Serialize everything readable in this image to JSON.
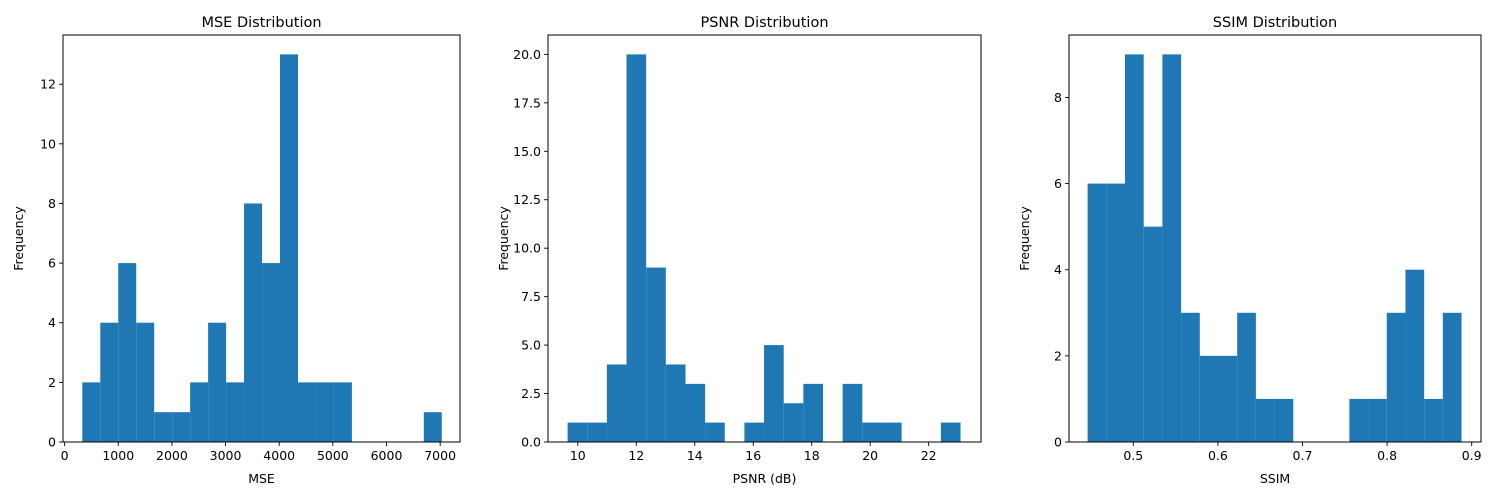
{
  "chart_data": [
    {
      "type": "bar",
      "title": "MSE Distribution",
      "xlabel": "MSE",
      "ylabel": "Frequency",
      "xlim": [
        -30,
        7370
      ],
      "ylim": [
        0,
        13.65
      ],
      "xticks": [
        0,
        1000,
        2000,
        3000,
        4000,
        5000,
        6000,
        7000
      ],
      "yticks": [
        0,
        2,
        4,
        6,
        8,
        10,
        12
      ],
      "bin_start": 330,
      "bin_width": 335,
      "values": [
        2,
        4,
        6,
        4,
        1,
        1,
        2,
        4,
        2,
        8,
        6,
        13,
        2,
        2,
        2,
        0,
        0,
        0,
        0,
        1
      ],
      "color": "#1f77b4",
      "grid": false
    },
    {
      "type": "bar",
      "title": "PSNR Distribution",
      "xlabel": "PSNR (dB)",
      "ylabel": "Frequency",
      "xlim": [
        8.98,
        23.79
      ],
      "ylim": [
        0,
        21
      ],
      "xticks": [
        10,
        12,
        14,
        16,
        18,
        20,
        22
      ],
      "yticks": [
        0.0,
        2.5,
        5.0,
        7.5,
        10.0,
        12.5,
        15.0,
        17.5,
        20.0
      ],
      "bin_start": 9.65,
      "bin_width": 0.672,
      "values": [
        1,
        1,
        4,
        20,
        9,
        4,
        3,
        1,
        0,
        1,
        5,
        2,
        3,
        0,
        3,
        1,
        1,
        0,
        0,
        1
      ],
      "color": "#1f77b4",
      "grid": false
    },
    {
      "type": "bar",
      "title": "SSIM Distribution",
      "xlabel": "SSIM",
      "ylabel": "Frequency",
      "xlim": [
        0.424,
        0.911
      ],
      "ylim": [
        0,
        9.45
      ],
      "xticks": [
        0.5,
        0.6,
        0.7,
        0.8,
        0.9
      ],
      "yticks": [
        0,
        2,
        4,
        6,
        8
      ],
      "bin_start": 0.446,
      "bin_width": 0.0221,
      "values": [
        6,
        6,
        9,
        5,
        9,
        3,
        2,
        2,
        3,
        1,
        1,
        0,
        0,
        0,
        1,
        1,
        3,
        4,
        1,
        3
      ],
      "color": "#1f77b4",
      "grid": false
    }
  ]
}
